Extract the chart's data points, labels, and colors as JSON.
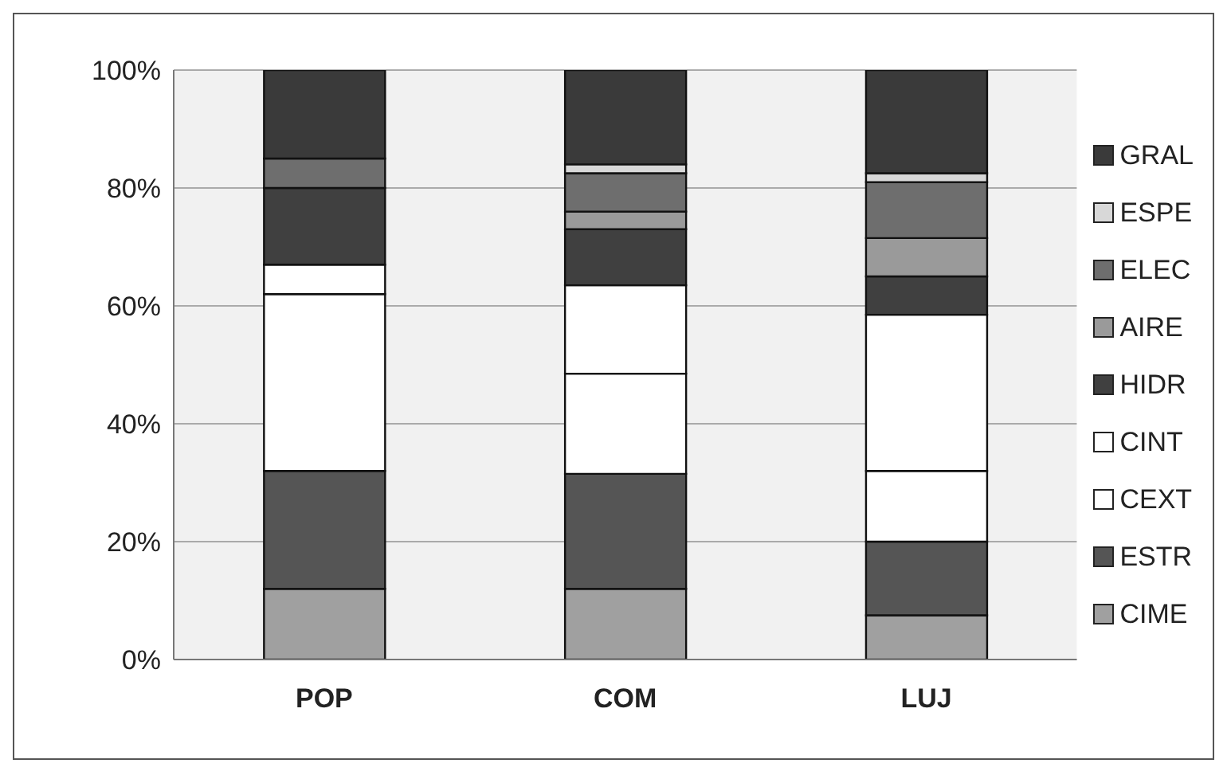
{
  "chart_data": {
    "type": "bar",
    "stacked": true,
    "categories": [
      "POP",
      "COM",
      "LUJ"
    ],
    "series": [
      {
        "name": "CIME",
        "color": "#a0a0a0",
        "values": [
          12,
          12,
          7.5
        ]
      },
      {
        "name": "ESTR",
        "color": "#555555",
        "values": [
          20,
          19.5,
          12.5
        ]
      },
      {
        "name": "CEXT",
        "color": "#ffffff",
        "values": [
          30,
          17,
          12
        ]
      },
      {
        "name": "CINT",
        "color": "#ffffff",
        "values": [
          5,
          15,
          26.5
        ]
      },
      {
        "name": "HIDR",
        "color": "#404040",
        "values": [
          13,
          9.5,
          6.5
        ]
      },
      {
        "name": "AIRE",
        "color": "#9a9a9a",
        "values": [
          0,
          3,
          6.5
        ]
      },
      {
        "name": "ELEC",
        "color": "#6e6e6e",
        "values": [
          5,
          6.5,
          9.5
        ]
      },
      {
        "name": "ESPE",
        "color": "#d8d8d8",
        "values": [
          0,
          1.5,
          1.5
        ]
      },
      {
        "name": "GRAL",
        "color": "#3a3a3a",
        "values": [
          15,
          16,
          17.5
        ]
      }
    ],
    "ylim": [
      0,
      100
    ],
    "yticks": [
      {
        "value": 0,
        "label": "0%"
      },
      {
        "value": 20,
        "label": "20%"
      },
      {
        "value": 40,
        "label": "40%"
      },
      {
        "value": 60,
        "label": "60%"
      },
      {
        "value": 80,
        "label": "80%"
      },
      {
        "value": 100,
        "label": "100%"
      }
    ],
    "grid": "y",
    "legend": "right"
  }
}
